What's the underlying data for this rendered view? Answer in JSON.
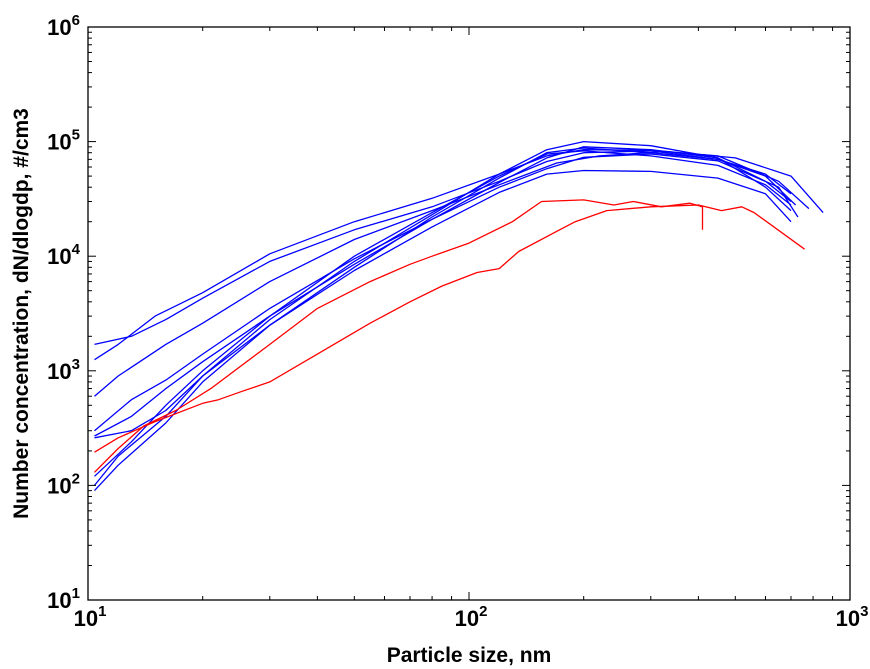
{
  "chart_data": {
    "type": "line",
    "title": "",
    "xlabel": "Particle size, nm",
    "ylabel": "Number concentration, dN/dlogdp, #/cm3",
    "xscale": "log",
    "yscale": "log",
    "xlim": [
      10,
      1000
    ],
    "ylim": [
      10,
      1000000
    ],
    "grid": false,
    "legend": "none",
    "x_ticks": [
      {
        "value": 10,
        "base": "10",
        "exp": "1"
      },
      {
        "value": 100,
        "base": "10",
        "exp": "2"
      },
      {
        "value": 1000,
        "base": "10",
        "exp": "3"
      }
    ],
    "y_ticks": [
      {
        "value": 10,
        "base": "10",
        "exp": "1"
      },
      {
        "value": 100,
        "base": "10",
        "exp": "2"
      },
      {
        "value": 1000,
        "base": "10",
        "exp": "3"
      },
      {
        "value": 10000,
        "base": "10",
        "exp": "4"
      },
      {
        "value": 100000,
        "base": "10",
        "exp": "5"
      },
      {
        "value": 1000000,
        "base": "10",
        "exp": "6"
      }
    ],
    "series": [
      {
        "color": "#0000ff",
        "points": [
          [
            10.4,
            1700
          ],
          [
            13,
            2000
          ],
          [
            16,
            2800
          ],
          [
            20,
            4300
          ],
          [
            30,
            9000
          ],
          [
            50,
            17000
          ],
          [
            80,
            27000
          ],
          [
            120,
            45000
          ],
          [
            160,
            67000
          ],
          [
            200,
            80000
          ],
          [
            300,
            83000
          ],
          [
            450,
            70000
          ],
          [
            600,
            50000
          ],
          [
            720,
            28000
          ]
        ]
      },
      {
        "color": "#0000ff",
        "points": [
          [
            10.4,
            1250
          ],
          [
            12,
            1700
          ],
          [
            15,
            3000
          ],
          [
            20,
            4800
          ],
          [
            30,
            10500
          ],
          [
            50,
            20000
          ],
          [
            80,
            32000
          ],
          [
            120,
            52000
          ],
          [
            160,
            75000
          ],
          [
            200,
            85000
          ],
          [
            300,
            84000
          ],
          [
            450,
            75000
          ],
          [
            650,
            45000
          ],
          [
            780,
            26000
          ]
        ]
      },
      {
        "color": "#0000ff",
        "points": [
          [
            10.4,
            600
          ],
          [
            12,
            900
          ],
          [
            16,
            1700
          ],
          [
            20,
            2600
          ],
          [
            30,
            6000
          ],
          [
            50,
            14000
          ],
          [
            80,
            25000
          ],
          [
            120,
            42000
          ],
          [
            170,
            65000
          ],
          [
            220,
            75000
          ],
          [
            330,
            82000
          ],
          [
            500,
            72000
          ],
          [
            700,
            50000
          ],
          [
            850,
            24000
          ]
        ]
      },
      {
        "color": "#0000ff",
        "points": [
          [
            10.4,
            300
          ],
          [
            13,
            560
          ],
          [
            16,
            830
          ],
          [
            20,
            1400
          ],
          [
            30,
            3500
          ],
          [
            50,
            9500
          ],
          [
            80,
            21000
          ],
          [
            120,
            40000
          ],
          [
            160,
            58000
          ],
          [
            200,
            73000
          ],
          [
            300,
            78000
          ],
          [
            450,
            68000
          ],
          [
            650,
            40000
          ],
          [
            730,
            22000
          ]
        ]
      },
      {
        "color": "#0000ff",
        "points": [
          [
            10.4,
            270
          ],
          [
            13,
            400
          ],
          [
            16,
            700
          ],
          [
            20,
            1200
          ],
          [
            30,
            3000
          ],
          [
            50,
            8500
          ],
          [
            80,
            21000
          ],
          [
            120,
            44000
          ],
          [
            160,
            72000
          ],
          [
            200,
            90000
          ],
          [
            300,
            85000
          ],
          [
            450,
            72000
          ],
          [
            600,
            45000
          ],
          [
            700,
            30000
          ]
        ]
      },
      {
        "color": "#0000ff",
        "points": [
          [
            10.4,
            260
          ],
          [
            13,
            300
          ],
          [
            16,
            450
          ],
          [
            20,
            900
          ],
          [
            30,
            2500
          ],
          [
            50,
            7500
          ],
          [
            80,
            18000
          ],
          [
            120,
            36000
          ],
          [
            160,
            52000
          ],
          [
            200,
            56000
          ],
          [
            300,
            55000
          ],
          [
            450,
            48000
          ],
          [
            600,
            35000
          ],
          [
            700,
            20000
          ]
        ]
      },
      {
        "color": "#0000ff",
        "points": [
          [
            10.4,
            100
          ],
          [
            12,
            180
          ],
          [
            16,
            400
          ],
          [
            20,
            900
          ],
          [
            30,
            2800
          ],
          [
            50,
            9000
          ],
          [
            80,
            23000
          ],
          [
            120,
            52000
          ],
          [
            160,
            85000
          ],
          [
            200,
            100000
          ],
          [
            300,
            92000
          ],
          [
            450,
            72000
          ],
          [
            600,
            40000
          ],
          [
            700,
            25000
          ]
        ]
      },
      {
        "color": "#0000ff",
        "points": [
          [
            10.4,
            90
          ],
          [
            12,
            150
          ],
          [
            16,
            350
          ],
          [
            20,
            800
          ],
          [
            30,
            2500
          ],
          [
            50,
            8000
          ],
          [
            80,
            22000
          ],
          [
            120,
            48000
          ],
          [
            160,
            80000
          ],
          [
            200,
            88000
          ],
          [
            300,
            80000
          ],
          [
            450,
            70000
          ],
          [
            600,
            52000
          ],
          [
            700,
            35000
          ]
        ]
      },
      {
        "color": "#0000ff",
        "points": [
          [
            10.4,
            120
          ],
          [
            13,
            240
          ],
          [
            16,
            500
          ],
          [
            20,
            1000
          ],
          [
            30,
            3000
          ],
          [
            50,
            10000
          ],
          [
            80,
            24000
          ],
          [
            120,
            50000
          ],
          [
            160,
            78000
          ],
          [
            200,
            83000
          ],
          [
            300,
            75000
          ],
          [
            450,
            62000
          ],
          [
            600,
            42000
          ],
          [
            700,
            28000
          ]
        ]
      },
      {
        "color": "#ff0000",
        "points": [
          [
            10.4,
            195
          ],
          [
            12,
            260
          ],
          [
            15,
            360
          ],
          [
            20,
            520
          ],
          [
            22,
            560
          ],
          [
            25,
            650
          ],
          [
            30,
            800
          ],
          [
            40,
            1400
          ],
          [
            55,
            2600
          ],
          [
            70,
            4000
          ],
          [
            85,
            5500
          ],
          [
            105,
            7200
          ],
          [
            120,
            7800
          ],
          [
            135,
            11000
          ],
          [
            170,
            16500
          ],
          [
            190,
            20000
          ],
          [
            230,
            25000
          ],
          [
            300,
            27000
          ],
          [
            400,
            28000
          ],
          [
            460,
            25000
          ],
          [
            520,
            27000
          ],
          [
            560,
            24000
          ],
          [
            760,
            11500
          ]
        ]
      },
      {
        "color": "#ff0000",
        "points": [
          [
            10.4,
            130
          ],
          [
            12,
            210
          ],
          [
            14,
            330
          ],
          [
            17,
            450
          ],
          [
            21,
            700
          ],
          [
            30,
            1700
          ],
          [
            40,
            3500
          ],
          [
            55,
            6000
          ],
          [
            70,
            8500
          ],
          [
            80,
            10000
          ],
          [
            100,
            13000
          ],
          [
            130,
            20000
          ],
          [
            155,
            30000
          ],
          [
            200,
            31000
          ],
          [
            240,
            28000
          ],
          [
            270,
            30000
          ],
          [
            320,
            27000
          ],
          [
            380,
            29000
          ],
          [
            410,
            27000
          ],
          [
            410,
            17000
          ]
        ]
      }
    ]
  }
}
